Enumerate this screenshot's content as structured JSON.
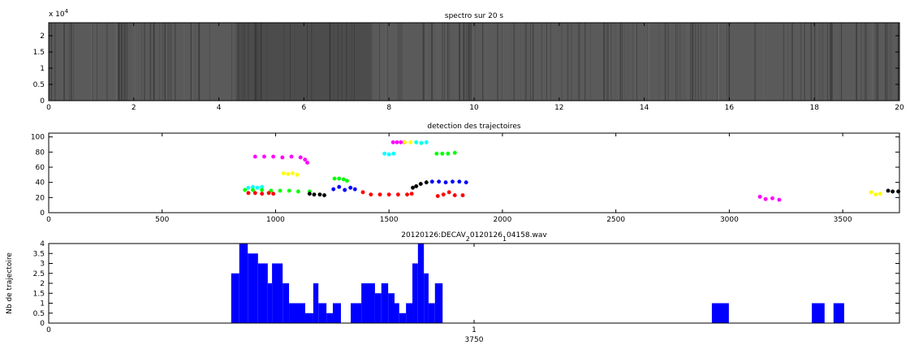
{
  "chart_data": [
    {
      "type": "spectrogram",
      "title": "spectro sur 20 s",
      "xlim": [
        0,
        20
      ],
      "xticks": [
        0,
        2,
        4,
        6,
        8,
        10,
        12,
        14,
        16,
        18,
        20
      ],
      "ylim": [
        0,
        24000
      ],
      "yticks": [
        0,
        {
          "value": 5000,
          "label": "0.5"
        },
        {
          "value": 10000,
          "label": "1"
        },
        {
          "value": 15000,
          "label": "1.5"
        },
        {
          "value": 20000,
          "label": "2"
        }
      ],
      "y_multiplier": "x 10",
      "y_multiplier_exponent": "4"
    },
    {
      "type": "scatter",
      "title": "detection des trajectoires",
      "xlim": [
        0,
        3750
      ],
      "xticks": [
        0,
        500,
        1000,
        1500,
        2000,
        2500,
        3000,
        3500
      ],
      "ylim": [
        0,
        105
      ],
      "yticks": [
        0,
        20,
        40,
        60,
        80,
        100
      ],
      "trajectories": [
        {
          "color": "#ff00ff",
          "x": [
            910,
            950,
            990,
            1030,
            1070,
            1110,
            1130,
            1140
          ],
          "y": [
            74,
            74,
            74,
            73,
            74,
            73,
            70,
            66
          ]
        },
        {
          "color": "#ff00ff",
          "x": [
            1518,
            1535,
            1552,
            1568
          ],
          "y": [
            93,
            93,
            93,
            93
          ]
        },
        {
          "color": "#ffff00",
          "x": [
            1570,
            1595,
            1620,
            1645
          ],
          "y": [
            93,
            93,
            93,
            92
          ]
        },
        {
          "color": "#00ffff",
          "x": [
            1480,
            1500,
            1520
          ],
          "y": [
            78,
            77,
            78
          ]
        },
        {
          "color": "#00ffff",
          "x": [
            1620,
            1642,
            1665
          ],
          "y": [
            93,
            92,
            93
          ]
        },
        {
          "color": "#00ff00",
          "x": [
            1710,
            1735,
            1760,
            1790
          ],
          "y": [
            78,
            78,
            78,
            79
          ]
        },
        {
          "color": "#ffff00",
          "x": [
            1035,
            1055,
            1075,
            1095
          ],
          "y": [
            52,
            51,
            52,
            50
          ]
        },
        {
          "color": "#00ff00",
          "x": [
            1260,
            1280,
            1300,
            1315
          ],
          "y": [
            45,
            45,
            44,
            42
          ]
        },
        {
          "color": "#0000ff",
          "x": [
            1255,
            1280,
            1305,
            1330,
            1350
          ],
          "y": [
            31,
            34,
            30,
            33,
            31
          ]
        },
        {
          "color": "#00ffff",
          "x": [
            880,
            900,
            920,
            940
          ],
          "y": [
            33,
            34,
            33,
            34
          ]
        },
        {
          "color": "#00ff00",
          "x": [
            865,
            900,
            940,
            980,
            1020,
            1060,
            1100,
            1150
          ],
          "y": [
            30,
            30,
            30,
            29,
            29,
            29,
            28,
            28
          ]
        },
        {
          "color": "#ff0000",
          "x": [
            880,
            910,
            940,
            970,
            990
          ],
          "y": [
            26,
            26,
            25,
            26,
            25
          ]
        },
        {
          "color": "#000000",
          "x": [
            1150,
            1170,
            1195,
            1215
          ],
          "y": [
            25,
            24,
            24,
            23
          ]
        },
        {
          "color": "#ff0000",
          "x": [
            1385,
            1420,
            1460,
            1500,
            1540,
            1580,
            1600
          ],
          "y": [
            27,
            24,
            24,
            24,
            24,
            24,
            25
          ]
        },
        {
          "color": "#000000",
          "x": [
            1605,
            1620,
            1640,
            1665
          ],
          "y": [
            33,
            35,
            38,
            40
          ]
        },
        {
          "color": "#0000ff",
          "x": [
            1690,
            1720,
            1750,
            1780,
            1810,
            1840
          ],
          "y": [
            41,
            41,
            40,
            41,
            41,
            40
          ]
        },
        {
          "color": "#ff0000",
          "x": [
            1715,
            1740,
            1765,
            1790,
            1825
          ],
          "y": [
            22,
            24,
            27,
            23,
            23
          ]
        },
        {
          "color": "#ff00ff",
          "x": [
            3135,
            3160,
            3190,
            3220
          ],
          "y": [
            21,
            18,
            19,
            17
          ]
        },
        {
          "color": "#ffff00",
          "x": [
            3625,
            3645,
            3665
          ],
          "y": [
            27,
            24,
            25
          ]
        },
        {
          "color": "#000000",
          "x": [
            3700,
            3720,
            3745
          ],
          "y": [
            29,
            28,
            28
          ]
        }
      ]
    },
    {
      "type": "bar",
      "title_parts": [
        {
          "text": "20120126:DECAV"
        },
        {
          "text": "2",
          "sub": true
        },
        {
          "text": "0120126"
        },
        {
          "text": "1",
          "sub": true
        },
        {
          "text": "04158.wav"
        }
      ],
      "ylabel": "Nb de trajectoire",
      "xlabel": "3750",
      "xlim": [
        0,
        2
      ],
      "xticks": [
        0,
        1
      ],
      "ylim": [
        0,
        4
      ],
      "yticks": [
        0,
        0.5,
        1,
        1.5,
        2,
        2.5,
        3,
        3.5,
        4
      ],
      "color": "#0000ff",
      "bars": [
        {
          "x0": 0.429,
          "x1": 0.448,
          "value": 2.5
        },
        {
          "x0": 0.448,
          "x1": 0.468,
          "value": 4
        },
        {
          "x0": 0.468,
          "x1": 0.492,
          "value": 3.5
        },
        {
          "x0": 0.492,
          "x1": 0.515,
          "value": 3
        },
        {
          "x0": 0.515,
          "x1": 0.525,
          "value": 2
        },
        {
          "x0": 0.525,
          "x1": 0.55,
          "value": 3
        },
        {
          "x0": 0.55,
          "x1": 0.565,
          "value": 2
        },
        {
          "x0": 0.565,
          "x1": 0.603,
          "value": 1
        },
        {
          "x0": 0.603,
          "x1": 0.622,
          "value": 0.5
        },
        {
          "x0": 0.622,
          "x1": 0.634,
          "value": 2
        },
        {
          "x0": 0.634,
          "x1": 0.653,
          "value": 1
        },
        {
          "x0": 0.653,
          "x1": 0.668,
          "value": 0.5
        },
        {
          "x0": 0.668,
          "x1": 0.687,
          "value": 1
        },
        {
          "x0": 0.71,
          "x1": 0.735,
          "value": 1
        },
        {
          "x0": 0.735,
          "x1": 0.767,
          "value": 2
        },
        {
          "x0": 0.767,
          "x1": 0.782,
          "value": 1.5
        },
        {
          "x0": 0.782,
          "x1": 0.798,
          "value": 2
        },
        {
          "x0": 0.798,
          "x1": 0.813,
          "value": 1.5
        },
        {
          "x0": 0.813,
          "x1": 0.824,
          "value": 1
        },
        {
          "x0": 0.824,
          "x1": 0.84,
          "value": 0.5
        },
        {
          "x0": 0.84,
          "x1": 0.855,
          "value": 1
        },
        {
          "x0": 0.855,
          "x1": 0.868,
          "value": 3
        },
        {
          "x0": 0.868,
          "x1": 0.882,
          "value": 4
        },
        {
          "x0": 0.882,
          "x1": 0.893,
          "value": 2.5
        },
        {
          "x0": 0.893,
          "x1": 0.908,
          "value": 1
        },
        {
          "x0": 0.908,
          "x1": 0.926,
          "value": 2
        },
        {
          "x0": 1.559,
          "x1": 1.599,
          "value": 1
        },
        {
          "x0": 1.794,
          "x1": 1.824,
          "value": 1
        },
        {
          "x0": 1.845,
          "x1": 1.87,
          "value": 1
        }
      ]
    }
  ]
}
